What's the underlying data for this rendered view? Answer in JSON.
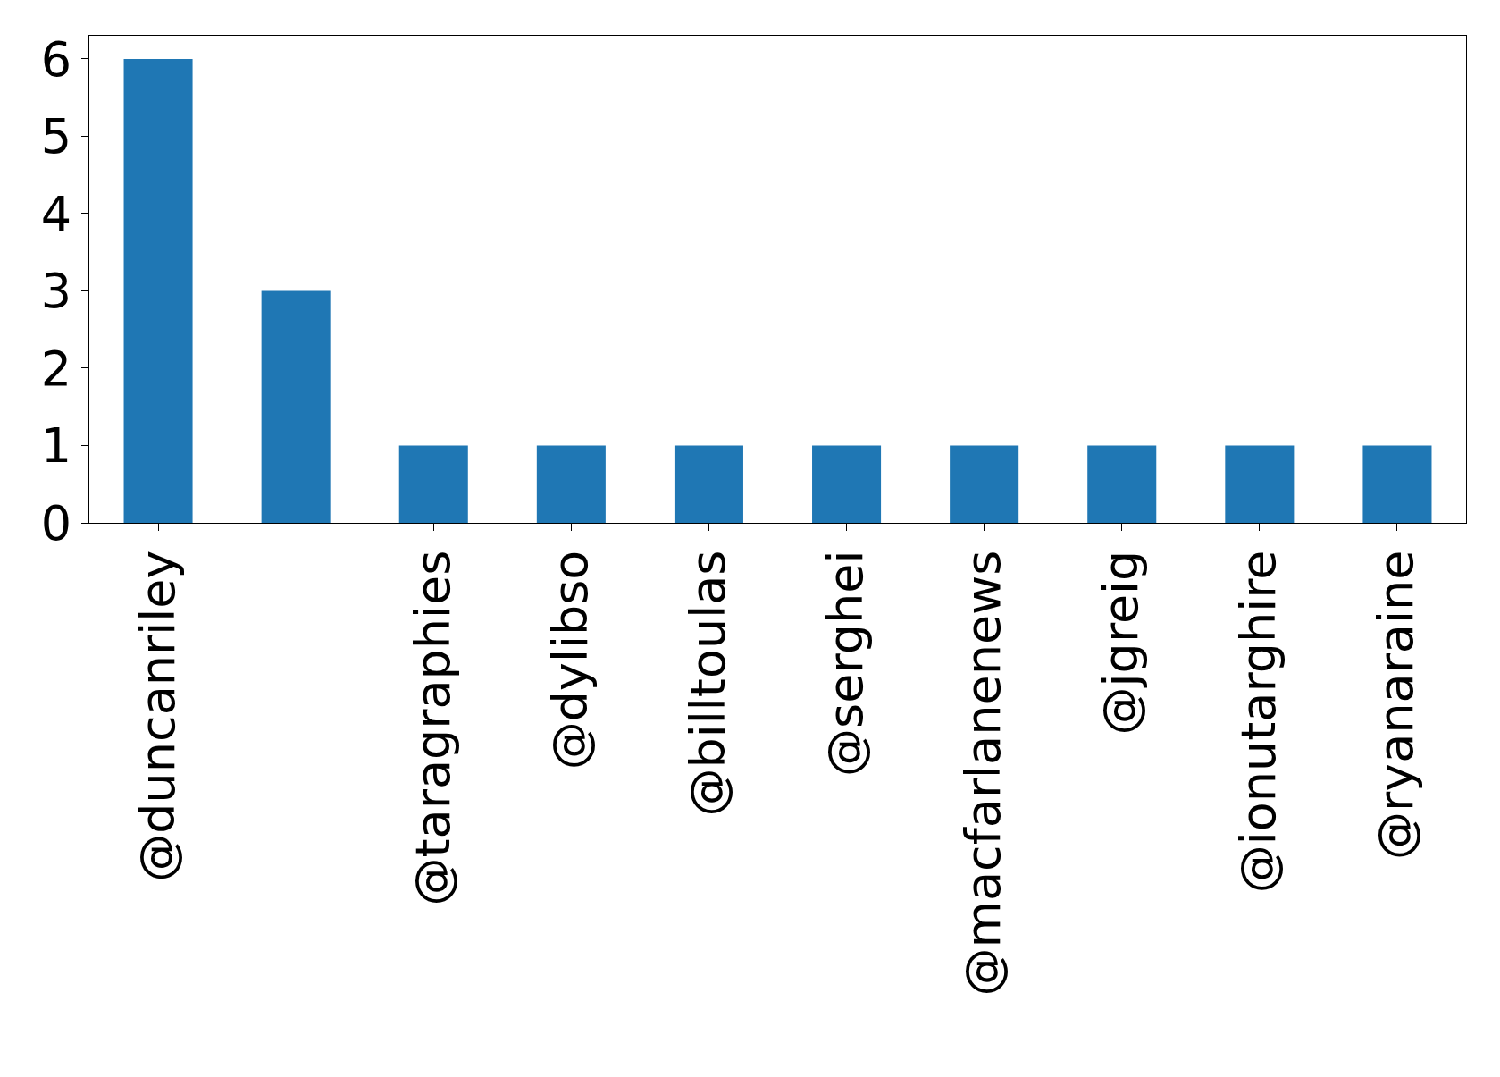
{
  "chart_data": {
    "type": "bar",
    "categories": [
      "@duncanriley",
      null,
      "@taragraphies",
      "@dylibso",
      "@billtoulas",
      "@serghei",
      "@macfarlanenews",
      "@jgreig",
      "@ionutarghire",
      "@ryanaraine"
    ],
    "values": [
      6,
      3,
      1,
      1,
      1,
      1,
      1,
      1,
      1,
      1
    ],
    "color": "#1f77b4",
    "ylim": [
      0,
      6.3
    ],
    "yticks": [
      0,
      1,
      2,
      3,
      4,
      5,
      6
    ]
  }
}
